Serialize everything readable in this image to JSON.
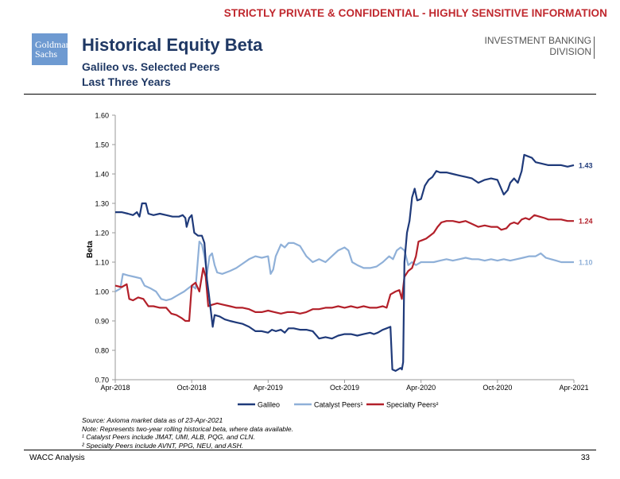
{
  "header": {
    "confidentiality": "STRICTLY PRIVATE & CONFIDENTIAL - HIGHLY SENSITIVE INFORMATION",
    "logo_line1": "Goldman",
    "logo_line2": "Sachs",
    "title": "Historical Equity Beta",
    "subtitle1": "Galileo vs. Selected Peers",
    "subtitle2": "Last Three Years",
    "division_line1": "INVESTMENT BANKING",
    "division_line2": "DIVISION"
  },
  "chart_data": {
    "type": "line",
    "ylabel": "Beta",
    "ylim": [
      0.7,
      1.6
    ],
    "yticks": [
      "0.70",
      "0.80",
      "0.90",
      "1.00",
      "1.10",
      "1.20",
      "1.30",
      "1.40",
      "1.50",
      "1.60"
    ],
    "xticks": [
      "Apr-2018",
      "Oct-2018",
      "Apr-2019",
      "Oct-2019",
      "Apr-2020",
      "Oct-2020",
      "Apr-2021"
    ],
    "xlim_months": [
      0,
      36
    ],
    "series": [
      {
        "name": "Galileo",
        "color": "#1f3a7a",
        "end_label": "1.43",
        "points": [
          [
            0,
            1.27
          ],
          [
            0.5,
            1.27
          ],
          [
            1,
            1.265
          ],
          [
            1.4,
            1.26
          ],
          [
            1.7,
            1.27
          ],
          [
            1.9,
            1.255
          ],
          [
            2.1,
            1.3
          ],
          [
            2.4,
            1.3
          ],
          [
            2.6,
            1.265
          ],
          [
            3,
            1.26
          ],
          [
            3.5,
            1.265
          ],
          [
            4,
            1.26
          ],
          [
            4.5,
            1.255
          ],
          [
            5,
            1.255
          ],
          [
            5.3,
            1.26
          ],
          [
            5.5,
            1.25
          ],
          [
            5.6,
            1.22
          ],
          [
            5.8,
            1.25
          ],
          [
            6,
            1.26
          ],
          [
            6.2,
            1.2
          ],
          [
            6.5,
            1.19
          ],
          [
            6.8,
            1.19
          ],
          [
            7,
            1.165
          ],
          [
            7.2,
            1.04
          ],
          [
            7.35,
            0.99
          ],
          [
            7.5,
            0.935
          ],
          [
            7.65,
            0.88
          ],
          [
            7.8,
            0.92
          ],
          [
            8.2,
            0.915
          ],
          [
            8.6,
            0.905
          ],
          [
            9,
            0.9
          ],
          [
            9.5,
            0.895
          ],
          [
            10,
            0.89
          ],
          [
            10.5,
            0.88
          ],
          [
            11,
            0.865
          ],
          [
            11.5,
            0.865
          ],
          [
            12,
            0.86
          ],
          [
            12.3,
            0.87
          ],
          [
            12.6,
            0.865
          ],
          [
            13,
            0.87
          ],
          [
            13.3,
            0.86
          ],
          [
            13.6,
            0.875
          ],
          [
            14,
            0.875
          ],
          [
            14.5,
            0.87
          ],
          [
            15,
            0.87
          ],
          [
            15.5,
            0.865
          ],
          [
            16,
            0.84
          ],
          [
            16.5,
            0.845
          ],
          [
            17,
            0.84
          ],
          [
            17.5,
            0.85
          ],
          [
            18,
            0.855
          ],
          [
            18.5,
            0.855
          ],
          [
            19,
            0.85
          ],
          [
            19.5,
            0.855
          ],
          [
            20,
            0.86
          ],
          [
            20.3,
            0.855
          ],
          [
            20.6,
            0.86
          ],
          [
            21,
            0.87
          ],
          [
            21.3,
            0.875
          ],
          [
            21.6,
            0.88
          ],
          [
            21.75,
            0.735
          ],
          [
            22,
            0.73
          ],
          [
            22.4,
            0.74
          ],
          [
            22.5,
            0.735
          ],
          [
            22.6,
            0.76
          ],
          [
            22.7,
            1.1
          ],
          [
            22.9,
            1.2
          ],
          [
            23.1,
            1.24
          ],
          [
            23.3,
            1.32
          ],
          [
            23.5,
            1.35
          ],
          [
            23.7,
            1.31
          ],
          [
            24,
            1.315
          ],
          [
            24.3,
            1.36
          ],
          [
            24.6,
            1.38
          ],
          [
            24.9,
            1.39
          ],
          [
            25.2,
            1.41
          ],
          [
            25.5,
            1.405
          ],
          [
            26,
            1.405
          ],
          [
            26.5,
            1.4
          ],
          [
            27,
            1.395
          ],
          [
            27.5,
            1.39
          ],
          [
            28,
            1.385
          ],
          [
            28.5,
            1.37
          ],
          [
            29,
            1.38
          ],
          [
            29.5,
            1.385
          ],
          [
            30,
            1.38
          ],
          [
            30.3,
            1.35
          ],
          [
            30.5,
            1.33
          ],
          [
            30.8,
            1.345
          ],
          [
            31,
            1.37
          ],
          [
            31.3,
            1.385
          ],
          [
            31.6,
            1.37
          ],
          [
            31.9,
            1.41
          ],
          [
            32.1,
            1.465
          ],
          [
            32.4,
            1.46
          ],
          [
            32.7,
            1.455
          ],
          [
            33,
            1.44
          ],
          [
            33.5,
            1.435
          ],
          [
            34,
            1.43
          ],
          [
            34.5,
            1.43
          ],
          [
            35,
            1.43
          ],
          [
            35.5,
            1.425
          ],
          [
            36,
            1.43
          ]
        ]
      },
      {
        "name": "Catalyst Peers¹",
        "color": "#8fb0d8",
        "end_label": "1.10",
        "points": [
          [
            0,
            1.0
          ],
          [
            0.4,
            1.01
          ],
          [
            0.6,
            1.06
          ],
          [
            1,
            1.055
          ],
          [
            1.5,
            1.05
          ],
          [
            2,
            1.045
          ],
          [
            2.3,
            1.02
          ],
          [
            2.8,
            1.01
          ],
          [
            3.2,
            1.0
          ],
          [
            3.6,
            0.975
          ],
          [
            4,
            0.97
          ],
          [
            4.4,
            0.975
          ],
          [
            5,
            0.99
          ],
          [
            5.4,
            1.0
          ],
          [
            5.7,
            1.01
          ],
          [
            6,
            1.02
          ],
          [
            6.3,
            1.01
          ],
          [
            6.6,
            1.17
          ],
          [
            6.8,
            1.16
          ],
          [
            7,
            1.12
          ],
          [
            7.2,
            1.06
          ],
          [
            7.4,
            1.12
          ],
          [
            7.6,
            1.13
          ],
          [
            7.8,
            1.09
          ],
          [
            8,
            1.065
          ],
          [
            8.4,
            1.06
          ],
          [
            9,
            1.07
          ],
          [
            9.5,
            1.08
          ],
          [
            10,
            1.095
          ],
          [
            10.5,
            1.11
          ],
          [
            11,
            1.12
          ],
          [
            11.5,
            1.115
          ],
          [
            12,
            1.12
          ],
          [
            12.2,
            1.06
          ],
          [
            12.4,
            1.075
          ],
          [
            12.6,
            1.12
          ],
          [
            13,
            1.16
          ],
          [
            13.3,
            1.15
          ],
          [
            13.6,
            1.165
          ],
          [
            14,
            1.165
          ],
          [
            14.5,
            1.155
          ],
          [
            15,
            1.12
          ],
          [
            15.5,
            1.1
          ],
          [
            16,
            1.11
          ],
          [
            16.5,
            1.1
          ],
          [
            17,
            1.12
          ],
          [
            17.5,
            1.14
          ],
          [
            18,
            1.15
          ],
          [
            18.3,
            1.14
          ],
          [
            18.6,
            1.1
          ],
          [
            19,
            1.09
          ],
          [
            19.5,
            1.08
          ],
          [
            20,
            1.08
          ],
          [
            20.5,
            1.085
          ],
          [
            21,
            1.1
          ],
          [
            21.5,
            1.12
          ],
          [
            21.8,
            1.11
          ],
          [
            22.1,
            1.14
          ],
          [
            22.4,
            1.15
          ],
          [
            22.7,
            1.14
          ],
          [
            23,
            1.09
          ],
          [
            23.3,
            1.1
          ],
          [
            23.6,
            1.09
          ],
          [
            24,
            1.1
          ],
          [
            24.5,
            1.1
          ],
          [
            25,
            1.1
          ],
          [
            25.5,
            1.105
          ],
          [
            26,
            1.11
          ],
          [
            26.5,
            1.105
          ],
          [
            27,
            1.11
          ],
          [
            27.5,
            1.115
          ],
          [
            28,
            1.11
          ],
          [
            28.5,
            1.11
          ],
          [
            29,
            1.105
          ],
          [
            29.5,
            1.11
          ],
          [
            30,
            1.105
          ],
          [
            30.5,
            1.11
          ],
          [
            31,
            1.105
          ],
          [
            31.5,
            1.11
          ],
          [
            32,
            1.115
          ],
          [
            32.5,
            1.12
          ],
          [
            33,
            1.12
          ],
          [
            33.4,
            1.13
          ],
          [
            33.8,
            1.115
          ],
          [
            34.2,
            1.11
          ],
          [
            34.6,
            1.105
          ],
          [
            35,
            1.1
          ],
          [
            35.5,
            1.1
          ],
          [
            36,
            1.1
          ]
        ]
      },
      {
        "name": "Specialty Peers²",
        "color": "#b3202a",
        "end_label": "1.24",
        "points": [
          [
            0,
            1.02
          ],
          [
            0.5,
            1.015
          ],
          [
            0.9,
            1.025
          ],
          [
            1.1,
            0.975
          ],
          [
            1.4,
            0.97
          ],
          [
            1.8,
            0.98
          ],
          [
            2.2,
            0.975
          ],
          [
            2.6,
            0.95
          ],
          [
            3,
            0.95
          ],
          [
            3.5,
            0.945
          ],
          [
            4,
            0.945
          ],
          [
            4.4,
            0.925
          ],
          [
            4.8,
            0.92
          ],
          [
            5.2,
            0.91
          ],
          [
            5.5,
            0.9
          ],
          [
            5.8,
            0.9
          ],
          [
            6,
            1.02
          ],
          [
            6.3,
            1.03
          ],
          [
            6.6,
            1.0
          ],
          [
            6.9,
            1.08
          ],
          [
            7.1,
            1.05
          ],
          [
            7.3,
            0.95
          ],
          [
            7.6,
            0.955
          ],
          [
            8,
            0.96
          ],
          [
            8.5,
            0.955
          ],
          [
            9,
            0.95
          ],
          [
            9.5,
            0.945
          ],
          [
            10,
            0.945
          ],
          [
            10.5,
            0.94
          ],
          [
            11,
            0.93
          ],
          [
            11.5,
            0.93
          ],
          [
            12,
            0.935
          ],
          [
            12.5,
            0.93
          ],
          [
            13,
            0.925
          ],
          [
            13.5,
            0.93
          ],
          [
            14,
            0.93
          ],
          [
            14.5,
            0.925
          ],
          [
            15,
            0.93
          ],
          [
            15.5,
            0.94
          ],
          [
            16,
            0.94
          ],
          [
            16.5,
            0.945
          ],
          [
            17,
            0.945
          ],
          [
            17.5,
            0.95
          ],
          [
            18,
            0.945
          ],
          [
            18.5,
            0.95
          ],
          [
            19,
            0.945
          ],
          [
            19.5,
            0.95
          ],
          [
            20,
            0.945
          ],
          [
            20.5,
            0.945
          ],
          [
            21,
            0.95
          ],
          [
            21.3,
            0.945
          ],
          [
            21.6,
            0.99
          ],
          [
            22,
            1.0
          ],
          [
            22.3,
            1.005
          ],
          [
            22.5,
            0.975
          ],
          [
            22.7,
            1.05
          ],
          [
            23,
            1.07
          ],
          [
            23.3,
            1.08
          ],
          [
            23.6,
            1.12
          ],
          [
            23.8,
            1.17
          ],
          [
            24.1,
            1.175
          ],
          [
            24.4,
            1.18
          ],
          [
            24.7,
            1.19
          ],
          [
            25,
            1.2
          ],
          [
            25.3,
            1.22
          ],
          [
            25.6,
            1.235
          ],
          [
            26,
            1.24
          ],
          [
            26.5,
            1.24
          ],
          [
            27,
            1.235
          ],
          [
            27.5,
            1.24
          ],
          [
            28,
            1.23
          ],
          [
            28.5,
            1.22
          ],
          [
            29,
            1.225
          ],
          [
            29.5,
            1.22
          ],
          [
            30,
            1.22
          ],
          [
            30.3,
            1.21
          ],
          [
            30.7,
            1.215
          ],
          [
            31,
            1.23
          ],
          [
            31.3,
            1.235
          ],
          [
            31.6,
            1.23
          ],
          [
            31.9,
            1.245
          ],
          [
            32.2,
            1.25
          ],
          [
            32.5,
            1.245
          ],
          [
            32.9,
            1.26
          ],
          [
            33.3,
            1.255
          ],
          [
            33.7,
            1.25
          ],
          [
            34,
            1.245
          ],
          [
            34.5,
            1.245
          ],
          [
            35,
            1.245
          ],
          [
            35.5,
            1.24
          ],
          [
            36,
            1.24
          ]
        ]
      }
    ]
  },
  "notes": {
    "source": "Source: Axioma market data as of 23-Apr-2021",
    "note": "Note: Represents two-year rolling historical beta, where data available.",
    "footnote1": "¹ Catalyst Peers include JMAT, UMI, ALB, PQG, and CLN.",
    "footnote2": "² Specialty Peers include AVNT, PPG, NEU, and ASH."
  },
  "footer": {
    "left": "WACC Analysis",
    "page": "33"
  }
}
